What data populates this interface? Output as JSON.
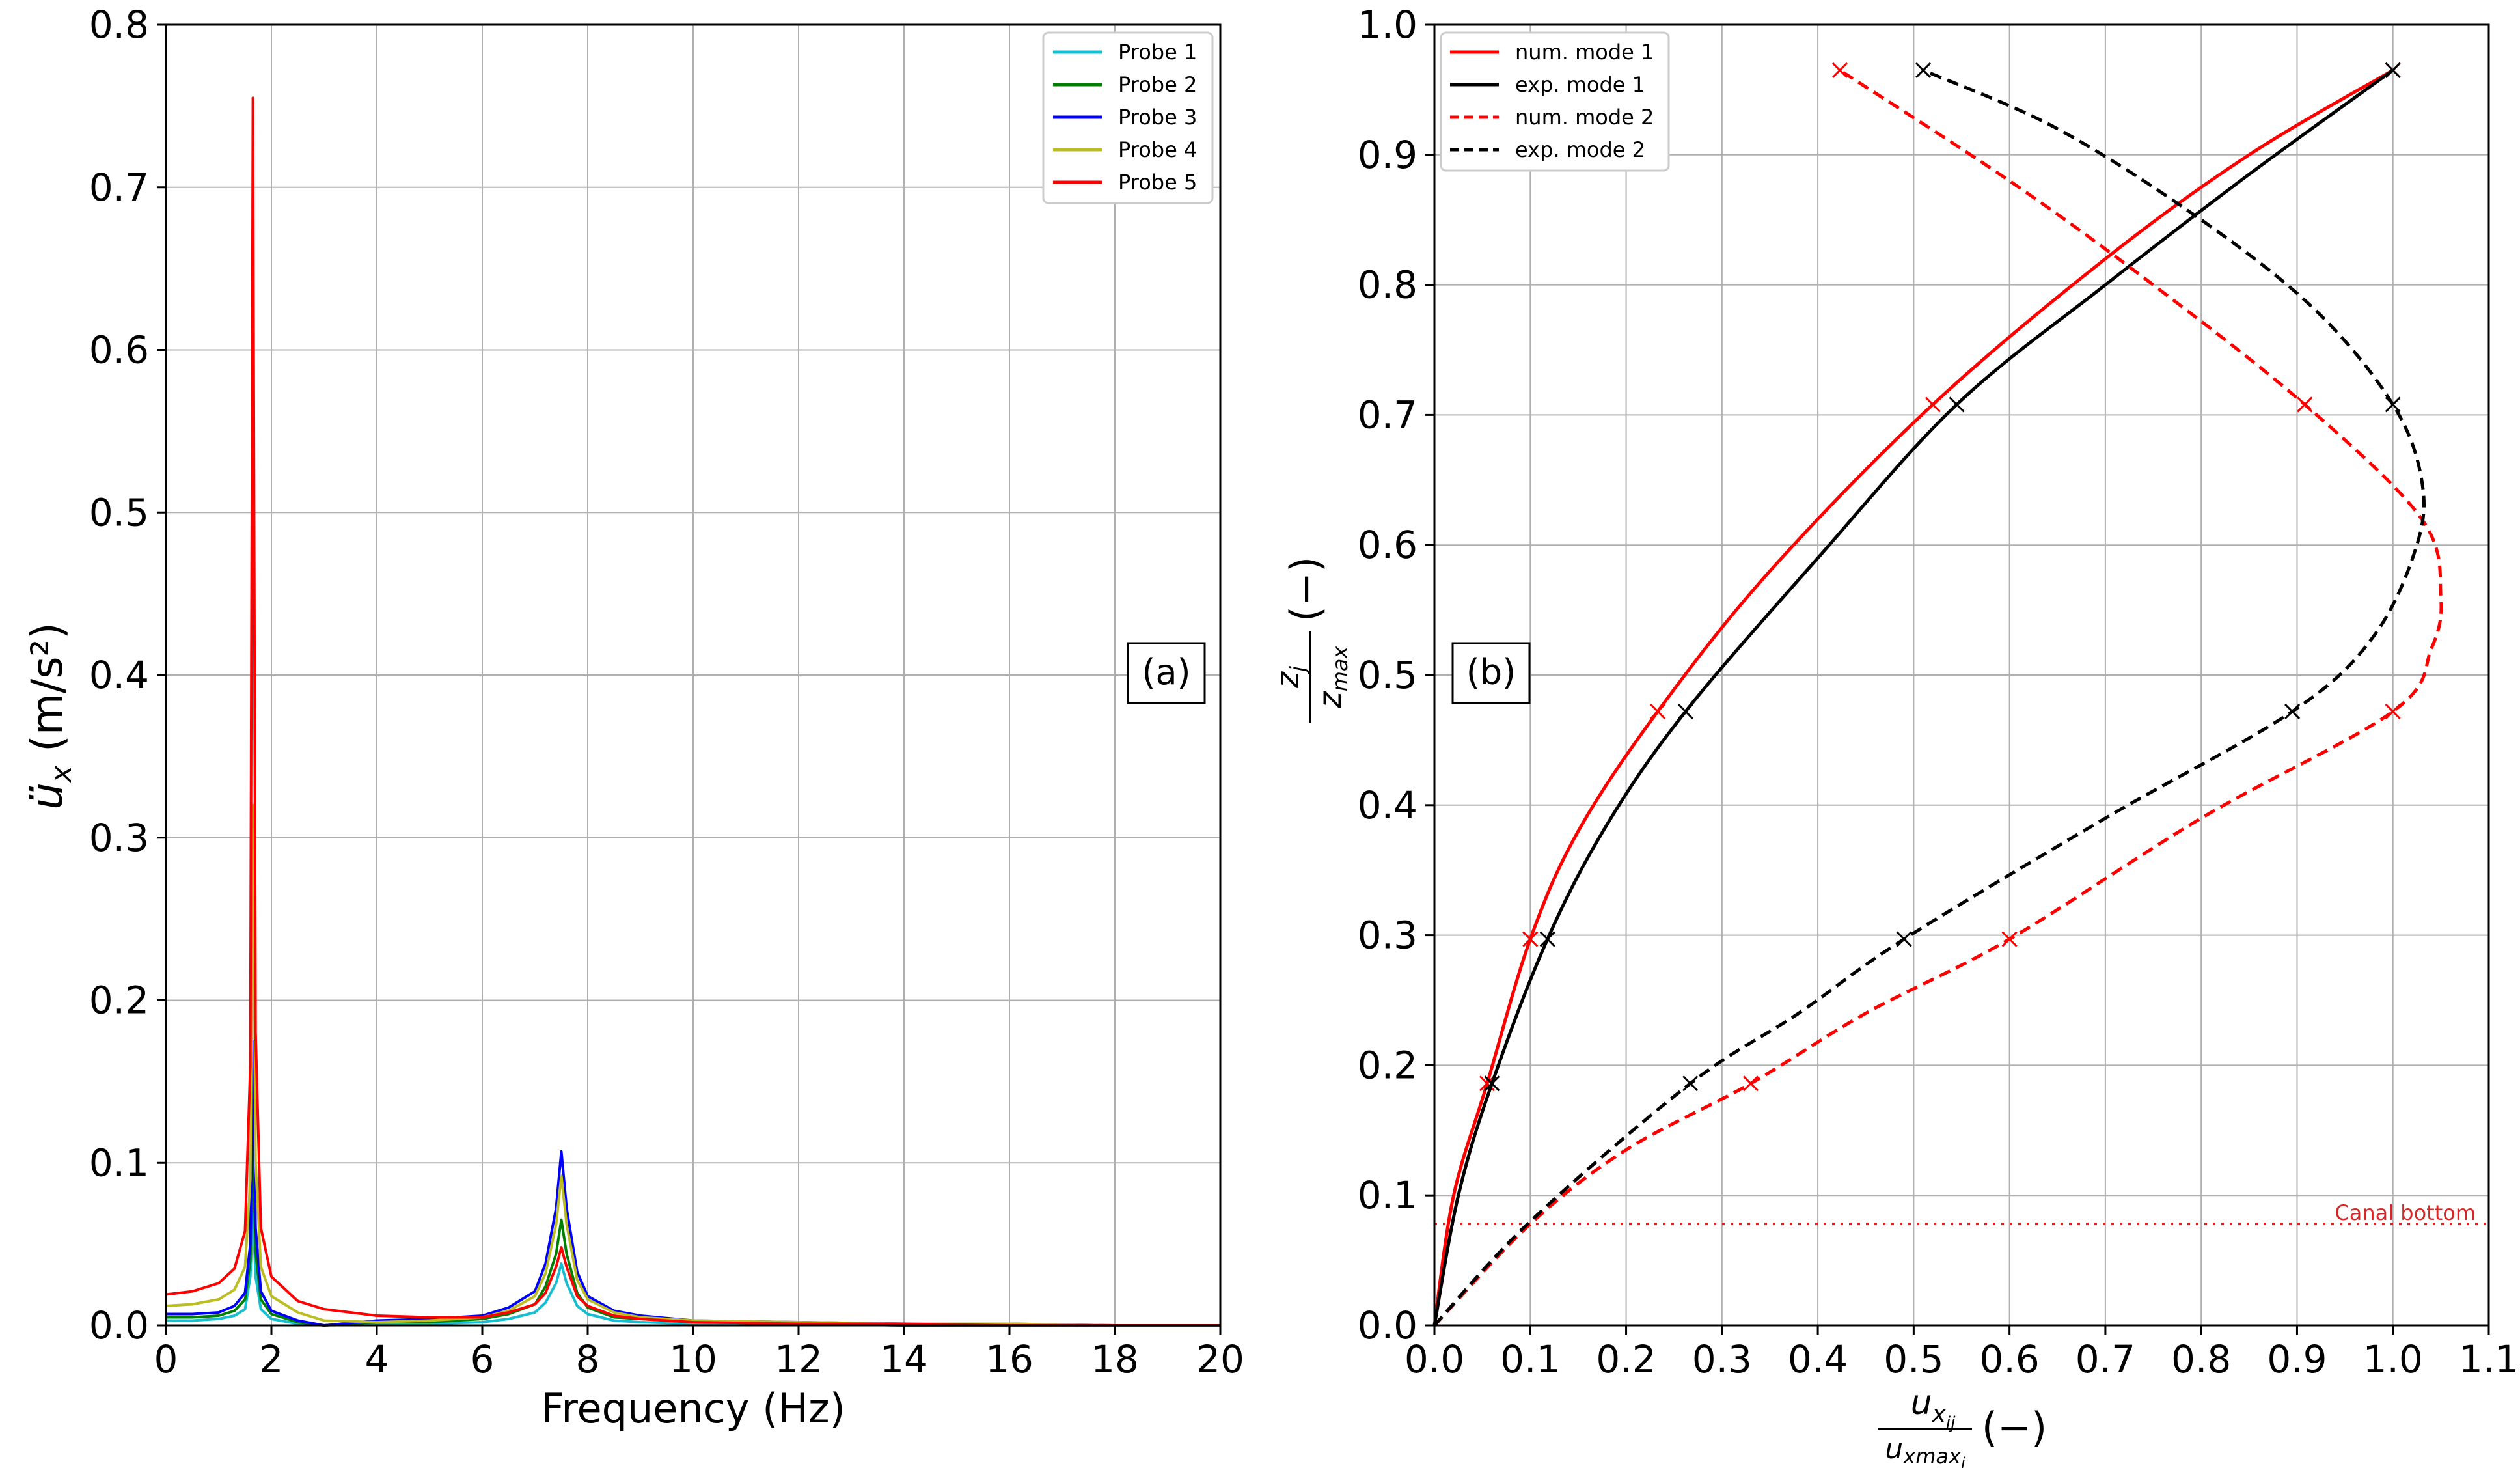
{
  "chart_data": [
    {
      "panel": "(a)",
      "type": "line",
      "xlabel": "Frequency (Hz)",
      "ylabel": "ü_x (m/s²)",
      "xlim": [
        0,
        20
      ],
      "ylim": [
        0,
        0.8
      ],
      "xticks": [
        0,
        2,
        4,
        6,
        8,
        10,
        12,
        14,
        16,
        18,
        20
      ],
      "xtick_labels": [
        "0",
        "2",
        "4",
        "6",
        "8",
        "10",
        "12",
        "14",
        "16",
        "18",
        "20"
      ],
      "yticks": [
        0.0,
        0.1,
        0.2,
        0.3,
        0.4,
        0.5,
        0.6,
        0.7,
        0.8
      ],
      "ytick_labels": [
        "0.0",
        "0.1",
        "0.2",
        "0.3",
        "0.4",
        "0.5",
        "0.6",
        "0.7",
        "0.8"
      ],
      "grid": true,
      "legend_position": "top-right",
      "annotation": "(a)",
      "x": [
        0,
        0.5,
        1.0,
        1.3,
        1.5,
        1.6,
        1.65,
        1.7,
        1.8,
        2.0,
        2.5,
        3,
        4,
        5,
        6,
        6.5,
        7,
        7.2,
        7.4,
        7.5,
        7.6,
        7.8,
        8,
        8.5,
        9,
        10,
        12,
        14,
        16,
        18,
        20
      ],
      "series": [
        {
          "name": "Probe 1",
          "color": "#17becf",
          "values": [
            0.003,
            0.003,
            0.004,
            0.006,
            0.01,
            0.03,
            0.07,
            0.03,
            0.01,
            0.004,
            0.001,
            0.0,
            0.001,
            0.001,
            0.002,
            0.004,
            0.008,
            0.014,
            0.026,
            0.038,
            0.026,
            0.012,
            0.007,
            0.003,
            0.002,
            0.001,
            0.001,
            0.0,
            0.0,
            0.0,
            0.0
          ]
        },
        {
          "name": "Probe 2",
          "color": "#008000",
          "values": [
            0.005,
            0.005,
            0.006,
            0.009,
            0.016,
            0.04,
            0.11,
            0.045,
            0.016,
            0.007,
            0.002,
            0.0,
            0.002,
            0.002,
            0.004,
            0.007,
            0.013,
            0.024,
            0.044,
            0.065,
            0.044,
            0.02,
            0.011,
            0.005,
            0.004,
            0.002,
            0.001,
            0.0,
            0.0,
            0.0,
            0.0
          ]
        },
        {
          "name": "Probe 3",
          "color": "#0000ff",
          "values": [
            0.007,
            0.007,
            0.008,
            0.012,
            0.02,
            0.05,
            0.175,
            0.06,
            0.021,
            0.009,
            0.003,
            0.0,
            0.003,
            0.004,
            0.006,
            0.011,
            0.021,
            0.038,
            0.072,
            0.107,
            0.072,
            0.033,
            0.018,
            0.009,
            0.006,
            0.003,
            0.002,
            0.001,
            0.001,
            0.0,
            0.0
          ]
        },
        {
          "name": "Probe 4",
          "color": "#bcbd22",
          "values": [
            0.012,
            0.013,
            0.016,
            0.022,
            0.036,
            0.09,
            0.32,
            0.1,
            0.036,
            0.018,
            0.008,
            0.003,
            0.002,
            0.003,
            0.005,
            0.009,
            0.018,
            0.032,
            0.062,
            0.092,
            0.062,
            0.028,
            0.016,
            0.008,
            0.005,
            0.003,
            0.002,
            0.001,
            0.001,
            0.0,
            0.0
          ]
        },
        {
          "name": "Probe 5",
          "color": "#ff0000",
          "values": [
            0.019,
            0.021,
            0.026,
            0.035,
            0.058,
            0.16,
            0.755,
            0.18,
            0.06,
            0.03,
            0.015,
            0.01,
            0.006,
            0.005,
            0.005,
            0.008,
            0.013,
            0.02,
            0.036,
            0.048,
            0.036,
            0.018,
            0.012,
            0.006,
            0.004,
            0.002,
            0.001,
            0.001,
            0.0,
            0.0,
            0.0
          ]
        }
      ]
    },
    {
      "panel": "(b)",
      "type": "line",
      "xlabel_numerator": "u",
      "xlabel_numerator_sub": "x",
      "xlabel_numerator_subsub": "ij",
      "xlabel_denominator": "u",
      "xlabel_denominator_sub": "xmax",
      "xlabel_denominator_subsub": "i",
      "xlabel_unit": "(−)",
      "ylabel_numerator": "z",
      "ylabel_numerator_sub": "j",
      "ylabel_denominator": "z",
      "ylabel_denominator_sub": "max",
      "ylabel_unit": "(−)",
      "xlim": [
        0,
        1.1
      ],
      "ylim": [
        0,
        1.0
      ],
      "xticks": [
        0.0,
        0.1,
        0.2,
        0.3,
        0.4,
        0.5,
        0.6,
        0.7,
        0.8,
        0.9,
        1.0,
        1.1
      ],
      "xtick_labels": [
        "0.0",
        "0.1",
        "0.2",
        "0.3",
        "0.4",
        "0.5",
        "0.6",
        "0.7",
        "0.8",
        "0.9",
        "1.0",
        "1.1"
      ],
      "yticks": [
        0.0,
        0.1,
        0.2,
        0.3,
        0.4,
        0.5,
        0.6,
        0.7,
        0.8,
        0.9,
        1.0
      ],
      "ytick_labels": [
        "0.0",
        "0.1",
        "0.2",
        "0.3",
        "0.4",
        "0.5",
        "0.6",
        "0.7",
        "0.8",
        "0.9",
        "1.0"
      ],
      "grid": true,
      "legend_position": "top-left",
      "annotation": "(b)",
      "canal_bottom": {
        "label": "Canal bottom",
        "y": 0.078,
        "color": "#d62728"
      },
      "series": [
        {
          "name": "num. mode 1",
          "color": "#ff0000",
          "dash": false,
          "x": [
            0,
            0.02,
            0.055,
            0.1,
            0.15,
            0.233,
            0.35,
            0.52,
            0.7,
            0.85,
            1.0
          ],
          "y": [
            0,
            0.1,
            0.186,
            0.297,
            0.38,
            0.472,
            0.58,
            0.708,
            0.82,
            0.9,
            0.965
          ],
          "markers": [
            [
              0.055,
              0.186
            ],
            [
              0.1,
              0.297
            ],
            [
              0.233,
              0.472
            ],
            [
              0.52,
              0.708
            ],
            [
              1.0,
              0.965
            ]
          ]
        },
        {
          "name": "exp. mode 1",
          "color": "#000000",
          "dash": false,
          "x": [
            0,
            0.025,
            0.06,
            0.118,
            0.18,
            0.262,
            0.4,
            0.545,
            0.7,
            0.85,
            1.0
          ],
          "y": [
            0,
            0.1,
            0.186,
            0.297,
            0.385,
            0.472,
            0.59,
            0.708,
            0.8,
            0.885,
            0.965
          ],
          "markers": [
            [
              0.06,
              0.186
            ],
            [
              0.118,
              0.297
            ],
            [
              0.262,
              0.472
            ],
            [
              0.545,
              0.708
            ],
            [
              1.0,
              0.965
            ]
          ]
        },
        {
          "name": "num. mode 2",
          "color": "#ff0000",
          "dash": true,
          "x": [
            0,
            0.1,
            0.2,
            0.33,
            0.45,
            0.6,
            0.8,
            1.0,
            1.04,
            1.05,
            1.03,
            0.908,
            0.75,
            0.6,
            0.423
          ],
          "y": [
            0,
            0.078,
            0.135,
            0.186,
            0.24,
            0.297,
            0.39,
            0.472,
            0.52,
            0.56,
            0.62,
            0.708,
            0.8,
            0.88,
            0.965
          ],
          "markers": [
            [
              0.33,
              0.186
            ],
            [
              0.6,
              0.297
            ],
            [
              1.0,
              0.472
            ],
            [
              0.908,
              0.708
            ],
            [
              0.423,
              0.965
            ]
          ]
        },
        {
          "name": "exp. mode 2",
          "color": "#000000",
          "dash": true,
          "x": [
            0,
            0.1,
            0.267,
            0.38,
            0.49,
            0.7,
            0.895,
            0.98,
            1.025,
            1.03,
            1.0,
            0.92,
            0.8,
            0.65,
            0.51
          ],
          "y": [
            0,
            0.08,
            0.186,
            0.24,
            0.297,
            0.39,
            0.472,
            0.53,
            0.6,
            0.65,
            0.708,
            0.78,
            0.85,
            0.92,
            0.965
          ],
          "markers": [
            [
              0.267,
              0.186
            ],
            [
              0.49,
              0.297
            ],
            [
              0.895,
              0.472
            ],
            [
              1.0,
              0.708
            ],
            [
              0.51,
              0.965
            ]
          ]
        }
      ]
    }
  ]
}
